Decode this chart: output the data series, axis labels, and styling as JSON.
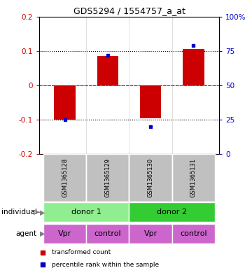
{
  "title": "GDS5294 / 1554757_a_at",
  "samples": [
    "GSM1365128",
    "GSM1365129",
    "GSM1365130",
    "GSM1365131"
  ],
  "red_bars": [
    -0.1,
    0.085,
    -0.095,
    0.105
  ],
  "blue_dots": [
    -0.1,
    0.088,
    -0.12,
    0.115
  ],
  "ylim": [
    -0.2,
    0.2
  ],
  "yticks_left": [
    -0.2,
    -0.1,
    0,
    0.1,
    0.2
  ],
  "yticks_right": [
    0,
    25,
    50,
    75,
    100
  ],
  "yticks_right_vals": [
    -0.2,
    -0.1,
    0.0,
    0.1,
    0.2
  ],
  "hlines_dotted": [
    -0.1,
    0.1
  ],
  "bar_color": "#cc0000",
  "dot_color": "#0000cc",
  "left_tick_color": "#cc0000",
  "right_tick_color": "#0000cc",
  "agent_labels": [
    "Vpr",
    "control",
    "Vpr",
    "control"
  ],
  "individual_color_1": "#90ee90",
  "individual_color_2": "#33cc33",
  "agent_color": "#cc66cc",
  "header_color": "#c0c0c0",
  "legend_red": "transformed count",
  "legend_blue": "percentile rank within the sample",
  "bar_width": 0.5
}
